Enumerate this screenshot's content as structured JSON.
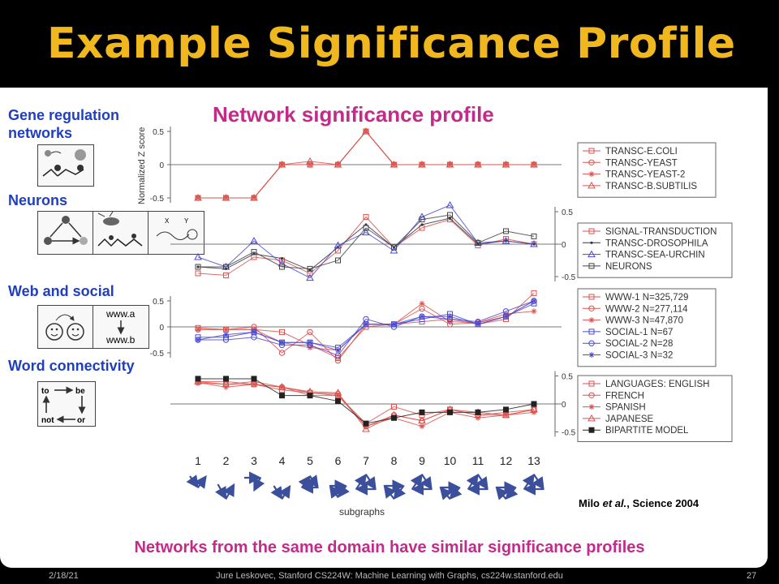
{
  "slide_title": "Example Significance Profile",
  "subtitle": "Network significance profile",
  "left_labels": [
    "Gene regulation networks",
    "Neurons",
    "Web and social",
    "Word connectivity"
  ],
  "caption": "Networks from the same domain have similar significance profiles",
  "citation": {
    "author": "Milo ",
    "etal": "et al.",
    "rest": ", Science 2004"
  },
  "footer": {
    "date": "2/18/21",
    "credit": "Jure Leskovec, Stanford CS224W: Machine Learning with Graphs, cs224w.stanford.edu",
    "page": "27"
  },
  "icons": {
    "www_a": "www.a",
    "www_b": "www.b",
    "to": "to",
    "be": "be",
    "not": "not",
    "or": "or",
    "x": "X",
    "y": "Y"
  },
  "chart_data": {
    "type": "line",
    "ylabel": "Normalized Z score",
    "xlabel": "subgraphs",
    "x": [
      1,
      2,
      3,
      4,
      5,
      6,
      7,
      8,
      9,
      10,
      11,
      12,
      13
    ],
    "panels": [
      {
        "name": "gene",
        "ticks": [
          "0.5",
          "0",
          "-0.5"
        ],
        "ylim": [
          -0.5,
          0.5
        ],
        "series": [
          {
            "name": "TRANSC-E.COLI",
            "marker": "square",
            "color": "#d9534f",
            "values": [
              -0.5,
              -0.5,
              -0.5,
              0,
              0,
              0,
              0.5,
              0,
              0,
              0,
              0,
              0,
              0
            ]
          },
          {
            "name": "TRANSC-YEAST",
            "marker": "circle",
            "color": "#d9534f",
            "values": [
              -0.5,
              -0.5,
              -0.5,
              0,
              0,
              0,
              0.5,
              0,
              0,
              0,
              0,
              0,
              0
            ]
          },
          {
            "name": "TRANSC-YEAST-2",
            "marker": "star",
            "color": "#d9534f",
            "values": [
              -0.5,
              -0.5,
              -0.5,
              0,
              0,
              0,
              0.5,
              0,
              0,
              0,
              0,
              0,
              0
            ]
          },
          {
            "name": "TRANSC-B.SUBTILIS",
            "marker": "triangle",
            "color": "#d9534f",
            "values": [
              -0.5,
              -0.5,
              -0.5,
              0,
              0.05,
              0,
              0.5,
              0,
              0,
              0,
              0,
              0,
              0
            ]
          }
        ]
      },
      {
        "name": "neurons",
        "ticks": [
          "0.5",
          "0",
          "-0.5"
        ],
        "ylim": [
          -0.5,
          0.5
        ],
        "series": [
          {
            "name": "SIGNAL-TRANSDUCTION",
            "marker": "square",
            "color": "#d9534f",
            "values": [
              -0.45,
              -0.48,
              -0.2,
              -0.25,
              -0.45,
              -0.1,
              0.42,
              -0.05,
              0.25,
              0.38,
              -0.02,
              0.08,
              0.0
            ]
          },
          {
            "name": "TRANSC-DROSOPHILA",
            "marker": "dot",
            "color": "#334",
            "values": [
              -0.35,
              -0.38,
              -0.15,
              -0.22,
              -0.4,
              -0.05,
              0.3,
              -0.05,
              0.3,
              0.4,
              0.0,
              0.05,
              0.0
            ]
          },
          {
            "name": "TRANSC-SEA-URCHIN",
            "marker": "triangle",
            "color": "#4a4ad0",
            "values": [
              -0.2,
              -0.35,
              0.05,
              -0.3,
              -0.52,
              -0.02,
              0.18,
              -0.1,
              0.42,
              0.6,
              0.02,
              0.05,
              0.0
            ]
          },
          {
            "name": "NEURONS",
            "marker": "square",
            "color": "#444",
            "values": [
              -0.35,
              -0.35,
              -0.12,
              -0.35,
              -0.38,
              -0.25,
              0.25,
              -0.05,
              0.38,
              0.45,
              0.02,
              0.2,
              0.12
            ]
          }
        ]
      },
      {
        "name": "web",
        "ticks": [
          "0.5",
          "0",
          "-0.5"
        ],
        "ylim": [
          -0.5,
          0.5
        ],
        "series": [
          {
            "name": "WWW-1 N=325,729",
            "marker": "square",
            "color": "#d9534f",
            "values": [
              -0.02,
              -0.05,
              -0.05,
              -0.1,
              -0.35,
              -0.6,
              0.0,
              0.05,
              0.1,
              0.15,
              0.05,
              0.15,
              0.65
            ]
          },
          {
            "name": "WWW-2 N=277,114",
            "marker": "circle",
            "color": "#d9534f",
            "values": [
              -0.05,
              -0.05,
              0.0,
              -0.5,
              -0.1,
              -0.65,
              0.05,
              0.05,
              0.35,
              0.05,
              0.08,
              0.2,
              0.5
            ]
          },
          {
            "name": "WWW-3 N=47,870",
            "marker": "star",
            "color": "#d9534f",
            "values": [
              -0.05,
              -0.05,
              -0.05,
              -0.3,
              -0.4,
              -0.45,
              0.05,
              0.05,
              0.45,
              0.1,
              0.08,
              0.25,
              0.3
            ]
          },
          {
            "name": "SOCIAL-1 N=67",
            "marker": "square",
            "color": "#4a4ad0",
            "values": [
              -0.2,
              -0.2,
              -0.1,
              -0.3,
              -0.3,
              -0.4,
              0.05,
              0.05,
              0.15,
              0.25,
              0.05,
              0.2,
              0.45
            ]
          },
          {
            "name": "SOCIAL-2 N=28",
            "marker": "circle",
            "color": "#4a4ad0",
            "values": [
              -0.25,
              -0.25,
              -0.2,
              -0.35,
              -0.35,
              -0.55,
              0.15,
              0.0,
              0.2,
              0.15,
              0.1,
              0.3,
              0.5
            ]
          },
          {
            "name": "SOCIAL-3 N=32",
            "marker": "star",
            "color": "#4a4ad0",
            "values": [
              -0.25,
              -0.15,
              -0.1,
              -0.3,
              -0.3,
              -0.45,
              0.05,
              0.05,
              0.2,
              0.2,
              0.05,
              0.2,
              0.5
            ]
          }
        ]
      },
      {
        "name": "word",
        "ticks": [
          "0.5",
          "0",
          "-0.5"
        ],
        "ylim": [
          -0.5,
          0.5
        ],
        "series": [
          {
            "name": "LANGUAGES: ENGLISH",
            "marker": "square",
            "color": "#d9534f",
            "values": [
              0.4,
              0.4,
              0.35,
              0.25,
              0.2,
              0.15,
              -0.35,
              -0.05,
              -0.2,
              -0.1,
              -0.2,
              -0.2,
              -0.1
            ]
          },
          {
            "name": "FRENCH",
            "marker": "circle",
            "color": "#d9534f",
            "values": [
              0.38,
              0.35,
              0.35,
              0.3,
              0.2,
              0.18,
              -0.4,
              -0.2,
              -0.3,
              -0.1,
              -0.2,
              -0.15,
              -0.1
            ]
          },
          {
            "name": "SPANISH",
            "marker": "star",
            "color": "#d9534f",
            "values": [
              0.38,
              0.3,
              0.35,
              0.3,
              0.15,
              0.15,
              -0.4,
              -0.25,
              -0.4,
              -0.15,
              -0.25,
              -0.2,
              -0.15
            ]
          },
          {
            "name": "JAPANESE",
            "marker": "triangle",
            "color": "#d9534f",
            "values": [
              0.4,
              0.35,
              0.4,
              0.3,
              0.22,
              0.2,
              -0.45,
              -0.2,
              -0.3,
              -0.1,
              -0.15,
              -0.2,
              -0.1
            ]
          },
          {
            "name": "BIPARTITE MODEL",
            "marker": "fsquare",
            "color": "#222",
            "values": [
              0.45,
              0.45,
              0.45,
              0.15,
              0.15,
              0.05,
              -0.35,
              -0.25,
              -0.15,
              -0.15,
              -0.15,
              -0.1,
              0.0
            ]
          }
        ]
      }
    ]
  }
}
